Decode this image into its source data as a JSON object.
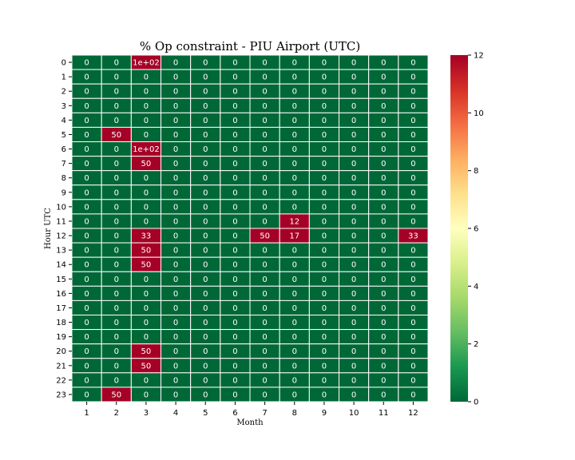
{
  "chart_data": {
    "type": "heatmap",
    "title": "% Op constraint - PIU Airport (UTC)",
    "xlabel": "Month",
    "ylabel": "Hour UTC",
    "x": [
      "1",
      "2",
      "3",
      "4",
      "5",
      "6",
      "7",
      "8",
      "9",
      "10",
      "11",
      "12"
    ],
    "y": [
      "0",
      "1",
      "2",
      "3",
      "4",
      "5",
      "6",
      "7",
      "8",
      "9",
      "10",
      "11",
      "12",
      "13",
      "14",
      "15",
      "16",
      "17",
      "18",
      "19",
      "20",
      "21",
      "22",
      "23"
    ],
    "values": [
      [
        0,
        0,
        100,
        0,
        0,
        0,
        0,
        0,
        0,
        0,
        0,
        0
      ],
      [
        0,
        0,
        0,
        0,
        0,
        0,
        0,
        0,
        0,
        0,
        0,
        0
      ],
      [
        0,
        0,
        0,
        0,
        0,
        0,
        0,
        0,
        0,
        0,
        0,
        0
      ],
      [
        0,
        0,
        0,
        0,
        0,
        0,
        0,
        0,
        0,
        0,
        0,
        0
      ],
      [
        0,
        0,
        0,
        0,
        0,
        0,
        0,
        0,
        0,
        0,
        0,
        0
      ],
      [
        0,
        50,
        0,
        0,
        0,
        0,
        0,
        0,
        0,
        0,
        0,
        0
      ],
      [
        0,
        0,
        100,
        0,
        0,
        0,
        0,
        0,
        0,
        0,
        0,
        0
      ],
      [
        0,
        0,
        50,
        0,
        0,
        0,
        0,
        0,
        0,
        0,
        0,
        0
      ],
      [
        0,
        0,
        0,
        0,
        0,
        0,
        0,
        0,
        0,
        0,
        0,
        0
      ],
      [
        0,
        0,
        0,
        0,
        0,
        0,
        0,
        0,
        0,
        0,
        0,
        0
      ],
      [
        0,
        0,
        0,
        0,
        0,
        0,
        0,
        0,
        0,
        0,
        0,
        0
      ],
      [
        0,
        0,
        0,
        0,
        0,
        0,
        0,
        12,
        0,
        0,
        0,
        0
      ],
      [
        0,
        0,
        33,
        0,
        0,
        0,
        50,
        17,
        0,
        0,
        0,
        33
      ],
      [
        0,
        0,
        50,
        0,
        0,
        0,
        0,
        0,
        0,
        0,
        0,
        0
      ],
      [
        0,
        0,
        50,
        0,
        0,
        0,
        0,
        0,
        0,
        0,
        0,
        0
      ],
      [
        0,
        0,
        0,
        0,
        0,
        0,
        0,
        0,
        0,
        0,
        0,
        0
      ],
      [
        0,
        0,
        0,
        0,
        0,
        0,
        0,
        0,
        0,
        0,
        0,
        0
      ],
      [
        0,
        0,
        0,
        0,
        0,
        0,
        0,
        0,
        0,
        0,
        0,
        0
      ],
      [
        0,
        0,
        0,
        0,
        0,
        0,
        0,
        0,
        0,
        0,
        0,
        0
      ],
      [
        0,
        0,
        0,
        0,
        0,
        0,
        0,
        0,
        0,
        0,
        0,
        0
      ],
      [
        0,
        0,
        50,
        0,
        0,
        0,
        0,
        0,
        0,
        0,
        0,
        0
      ],
      [
        0,
        0,
        50,
        0,
        0,
        0,
        0,
        0,
        0,
        0,
        0,
        0
      ],
      [
        0,
        0,
        0,
        0,
        0,
        0,
        0,
        0,
        0,
        0,
        0,
        0
      ],
      [
        0,
        50,
        0,
        0,
        0,
        0,
        0,
        0,
        0,
        0,
        0,
        0
      ]
    ],
    "labels": [
      [
        "0",
        "0",
        "1e+02",
        "0",
        "0",
        "0",
        "0",
        "0",
        "0",
        "0",
        "0",
        "0"
      ],
      [
        "0",
        "0",
        "0",
        "0",
        "0",
        "0",
        "0",
        "0",
        "0",
        "0",
        "0",
        "0"
      ],
      [
        "0",
        "0",
        "0",
        "0",
        "0",
        "0",
        "0",
        "0",
        "0",
        "0",
        "0",
        "0"
      ],
      [
        "0",
        "0",
        "0",
        "0",
        "0",
        "0",
        "0",
        "0",
        "0",
        "0",
        "0",
        "0"
      ],
      [
        "0",
        "0",
        "0",
        "0",
        "0",
        "0",
        "0",
        "0",
        "0",
        "0",
        "0",
        "0"
      ],
      [
        "0",
        "50",
        "0",
        "0",
        "0",
        "0",
        "0",
        "0",
        "0",
        "0",
        "0",
        "0"
      ],
      [
        "0",
        "0",
        "1e+02",
        "0",
        "0",
        "0",
        "0",
        "0",
        "0",
        "0",
        "0",
        "0"
      ],
      [
        "0",
        "0",
        "50",
        "0",
        "0",
        "0",
        "0",
        "0",
        "0",
        "0",
        "0",
        "0"
      ],
      [
        "0",
        "0",
        "0",
        "0",
        "0",
        "0",
        "0",
        "0",
        "0",
        "0",
        "0",
        "0"
      ],
      [
        "0",
        "0",
        "0",
        "0",
        "0",
        "0",
        "0",
        "0",
        "0",
        "0",
        "0",
        "0"
      ],
      [
        "0",
        "0",
        "0",
        "0",
        "0",
        "0",
        "0",
        "0",
        "0",
        "0",
        "0",
        "0"
      ],
      [
        "0",
        "0",
        "0",
        "0",
        "0",
        "0",
        "0",
        "12",
        "0",
        "0",
        "0",
        "0"
      ],
      [
        "0",
        "0",
        "33",
        "0",
        "0",
        "0",
        "50",
        "17",
        "0",
        "0",
        "0",
        "33"
      ],
      [
        "0",
        "0",
        "50",
        "0",
        "0",
        "0",
        "0",
        "0",
        "0",
        "0",
        "0",
        "0"
      ],
      [
        "0",
        "0",
        "50",
        "0",
        "0",
        "0",
        "0",
        "0",
        "0",
        "0",
        "0",
        "0"
      ],
      [
        "0",
        "0",
        "0",
        "0",
        "0",
        "0",
        "0",
        "0",
        "0",
        "0",
        "0",
        "0"
      ],
      [
        "0",
        "0",
        "0",
        "0",
        "0",
        "0",
        "0",
        "0",
        "0",
        "0",
        "0",
        "0"
      ],
      [
        "0",
        "0",
        "0",
        "0",
        "0",
        "0",
        "0",
        "0",
        "0",
        "0",
        "0",
        "0"
      ],
      [
        "0",
        "0",
        "0",
        "0",
        "0",
        "0",
        "0",
        "0",
        "0",
        "0",
        "0",
        "0"
      ],
      [
        "0",
        "0",
        "0",
        "0",
        "0",
        "0",
        "0",
        "0",
        "0",
        "0",
        "0",
        "0"
      ],
      [
        "0",
        "0",
        "50",
        "0",
        "0",
        "0",
        "0",
        "0",
        "0",
        "0",
        "0",
        "0"
      ],
      [
        "0",
        "0",
        "50",
        "0",
        "0",
        "0",
        "0",
        "0",
        "0",
        "0",
        "0",
        "0"
      ],
      [
        "0",
        "0",
        "0",
        "0",
        "0",
        "0",
        "0",
        "0",
        "0",
        "0",
        "0",
        "0"
      ],
      [
        "0",
        "50",
        "0",
        "0",
        "0",
        "0",
        "0",
        "0",
        "0",
        "0",
        "0",
        "0"
      ]
    ],
    "colorbar": {
      "vmin": 0,
      "vmax": 12,
      "ticks": [
        "0",
        "2",
        "4",
        "6",
        "8",
        "10",
        "12"
      ],
      "colormap": "RdYlGn_r",
      "stops": [
        "#006837",
        "#1a9850",
        "#66bd63",
        "#a6d96a",
        "#d9ef8b",
        "#ffffbf",
        "#fee08b",
        "#fdae61",
        "#f46d43",
        "#d73027",
        "#a50026"
      ]
    },
    "grid": false,
    "cell_text_color": "#ffffff",
    "cell_border_color": "#ffffff"
  }
}
